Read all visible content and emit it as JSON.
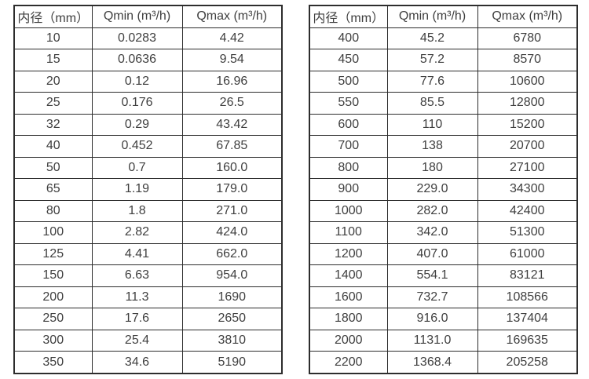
{
  "colors": {
    "border": "#2d2d2d",
    "text": "#3f3f3f",
    "background": "#ffffff"
  },
  "left_table": {
    "headers": [
      "内径（mm）",
      "Qmin (m³/h)",
      "Qmax (m³/h)"
    ],
    "rows": [
      [
        "10",
        "0.0283",
        "4.42"
      ],
      [
        "15",
        "0.0636",
        "9.54"
      ],
      [
        "20",
        "0.12",
        "16.96"
      ],
      [
        "25",
        "0.176",
        "26.5"
      ],
      [
        "32",
        "0.29",
        "43.42"
      ],
      [
        "40",
        "0.452",
        "67.85"
      ],
      [
        "50",
        "0.7",
        "160.0"
      ],
      [
        "65",
        "1.19",
        "179.0"
      ],
      [
        "80",
        "1.8",
        "271.0"
      ],
      [
        "100",
        "2.82",
        "424.0"
      ],
      [
        "125",
        "4.41",
        "662.0"
      ],
      [
        "150",
        "6.63",
        "954.0"
      ],
      [
        "200",
        "11.3",
        "1690"
      ],
      [
        "250",
        "17.6",
        "2650"
      ],
      [
        "300",
        "25.4",
        "3810"
      ],
      [
        "350",
        "34.6",
        "5190"
      ]
    ]
  },
  "right_table": {
    "headers": [
      "内径（mm）",
      "Qmin (m³/h)",
      "Qmax (m³/h)"
    ],
    "rows": [
      [
        "400",
        "45.2",
        "6780"
      ],
      [
        "450",
        "57.2",
        "8570"
      ],
      [
        "500",
        "77.6",
        "10600"
      ],
      [
        "550",
        "85.5",
        "12800"
      ],
      [
        "600",
        "110",
        "15200"
      ],
      [
        "700",
        "138",
        "20700"
      ],
      [
        "800",
        "180",
        "27100"
      ],
      [
        "900",
        "229.0",
        "34300"
      ],
      [
        "1000",
        "282.0",
        "42400"
      ],
      [
        "1100",
        "342.0",
        "51300"
      ],
      [
        "1200",
        "407.0",
        "61000"
      ],
      [
        "1400",
        "554.1",
        "83121"
      ],
      [
        "1600",
        "732.7",
        "108566"
      ],
      [
        "1800",
        "916.0",
        "137404"
      ],
      [
        "2000",
        "1131.0",
        "169635"
      ],
      [
        "2200",
        "1368.4",
        "205258"
      ]
    ]
  }
}
